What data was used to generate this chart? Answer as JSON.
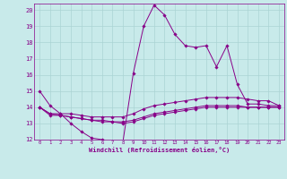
{
  "xlabel": "Windchill (Refroidissement éolien,°C)",
  "bg_color": "#c8eaea",
  "line_color": "#880088",
  "grid_color": "#aad4d4",
  "xlim": [
    -0.5,
    23.5
  ],
  "ylim": [
    12,
    20.4
  ],
  "xticks": [
    0,
    1,
    2,
    3,
    4,
    5,
    6,
    7,
    8,
    9,
    10,
    11,
    12,
    13,
    14,
    15,
    16,
    17,
    18,
    19,
    20,
    21,
    22,
    23
  ],
  "yticks": [
    12,
    13,
    14,
    15,
    16,
    17,
    18,
    19,
    20
  ],
  "lines": [
    {
      "x": [
        0,
        1,
        2,
        3,
        4,
        5,
        6,
        7,
        8,
        9,
        10,
        11,
        12,
        13,
        14,
        15,
        16,
        17,
        18,
        19,
        20,
        21,
        22,
        23
      ],
      "y": [
        15.0,
        14.1,
        13.6,
        13.0,
        12.5,
        12.1,
        12.0,
        11.9,
        11.85,
        16.1,
        19.0,
        20.3,
        19.7,
        18.5,
        17.8,
        17.7,
        17.8,
        16.5,
        17.8,
        15.4,
        14.2,
        14.2,
        14.1,
        14.1
      ]
    },
    {
      "x": [
        0,
        1,
        2,
        3,
        4,
        5,
        6,
        7,
        8,
        9,
        10,
        11,
        12,
        13,
        14,
        15,
        16,
        17,
        18,
        19,
        20,
        21,
        22,
        23
      ],
      "y": [
        14.0,
        13.6,
        13.6,
        13.6,
        13.5,
        13.4,
        13.4,
        13.4,
        13.4,
        13.6,
        13.9,
        14.1,
        14.2,
        14.3,
        14.4,
        14.5,
        14.6,
        14.6,
        14.6,
        14.6,
        14.5,
        14.4,
        14.4,
        14.1
      ]
    },
    {
      "x": [
        0,
        1,
        2,
        3,
        4,
        5,
        6,
        7,
        8,
        9,
        10,
        11,
        12,
        13,
        14,
        15,
        16,
        17,
        18,
        19,
        20,
        21,
        22,
        23
      ],
      "y": [
        14.0,
        13.6,
        13.5,
        13.4,
        13.3,
        13.2,
        13.2,
        13.1,
        13.1,
        13.2,
        13.4,
        13.6,
        13.7,
        13.8,
        13.9,
        14.0,
        14.1,
        14.1,
        14.1,
        14.1,
        14.0,
        14.0,
        14.0,
        14.0
      ]
    },
    {
      "x": [
        0,
        1,
        2,
        3,
        4,
        5,
        6,
        7,
        8,
        9,
        10,
        11,
        12,
        13,
        14,
        15,
        16,
        17,
        18,
        19,
        20,
        21,
        22,
        23
      ],
      "y": [
        14.0,
        13.5,
        13.5,
        13.4,
        13.3,
        13.2,
        13.1,
        13.1,
        13.0,
        13.1,
        13.3,
        13.5,
        13.6,
        13.7,
        13.8,
        13.9,
        14.0,
        14.0,
        14.0,
        14.0,
        14.0,
        14.0,
        14.0,
        14.0
      ]
    }
  ]
}
